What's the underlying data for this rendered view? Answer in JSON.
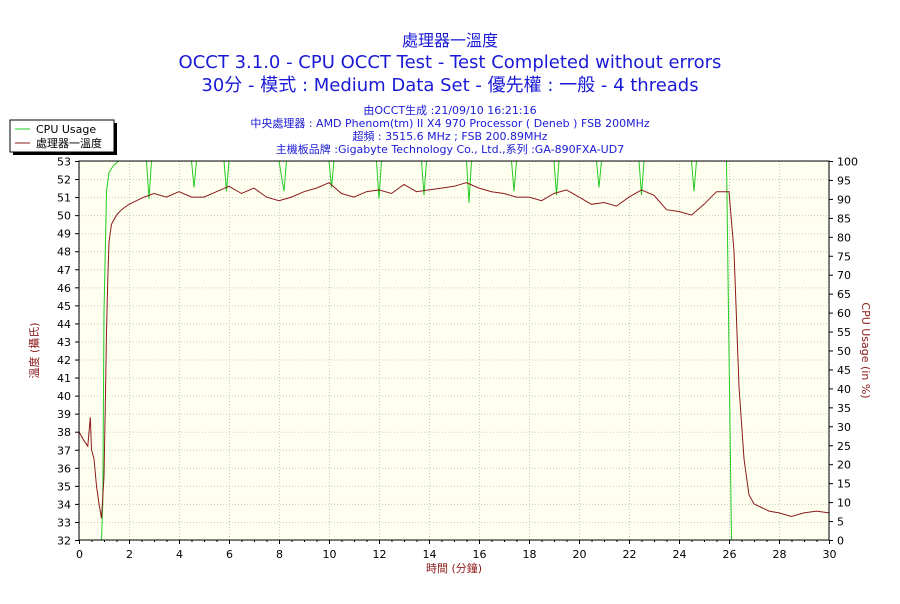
{
  "chart_data": {
    "type": "line",
    "title_lines": [
      "處理器一溫度",
      "OCCT 3.1.0 - CPU OCCT Test - Test Completed without errors",
      "30分 - 模式 : Medium Data Set - 優先權 : 一般 - 4 threads"
    ],
    "subtitle_lines": [
      "由OCCT生成 :21/09/10 16:21:16",
      "中央處理器 : AMD Phenom(tm) II X4 970 Processor ( Deneb ) FSB 200MHz",
      "超頻 : 3515.6 MHz ; FSB 200.89MHz",
      "主機板品牌 :Gigabyte Technology Co., Ltd.,系列 :GA-890FXA-UD7"
    ],
    "xlabel": "時間 (分鐘)",
    "ylabel_left": "溫度 (攝氏)",
    "ylabel_right": "CPU Usage (in %)",
    "xlim": [
      0,
      30
    ],
    "ylim_left": [
      32,
      53
    ],
    "ylim_right": [
      0,
      100
    ],
    "x_ticks": [
      0,
      2,
      4,
      6,
      8,
      10,
      12,
      14,
      16,
      18,
      20,
      22,
      24,
      26,
      28,
      30
    ],
    "y_ticks_left": [
      32,
      33,
      34,
      35,
      36,
      37,
      38,
      39,
      40,
      41,
      42,
      43,
      44,
      45,
      46,
      47,
      48,
      49,
      50,
      51,
      52,
      53
    ],
    "y_ticks_right": [
      0,
      5,
      10,
      15,
      20,
      25,
      30,
      35,
      40,
      45,
      50,
      55,
      60,
      65,
      70,
      75,
      80,
      85,
      90,
      95,
      100
    ],
    "grid": true,
    "legend_position": "top-left",
    "colors": {
      "background": "#fffff0",
      "cpu_usage": "#22cc22",
      "temperature": "#8b1a1a",
      "grid": "#c8c8c8",
      "title": "#1a1ad6"
    },
    "series": [
      {
        "name": "CPU Usage",
        "axis": "right",
        "color": "#22cc22",
        "x": [
          0,
          0.9,
          0.95,
          1.0,
          1.1,
          1.2,
          1.4,
          1.6,
          2.0,
          2.7,
          2.8,
          2.9,
          3.5,
          4.0,
          4.5,
          4.6,
          4.7,
          5.0,
          5.8,
          5.9,
          6.0,
          7.0,
          8.0,
          8.2,
          8.3,
          8.4,
          9.0,
          10.0,
          10.1,
          10.2,
          10.5,
          11.5,
          11.9,
          12.0,
          12.1,
          12.5,
          13.0,
          13.7,
          13.8,
          13.9,
          14.5,
          15.0,
          15.5,
          15.6,
          15.7,
          16.0,
          17.3,
          17.4,
          17.5,
          18.0,
          19.0,
          19.1,
          19.2,
          19.5,
          20.0,
          20.7,
          20.8,
          20.9,
          21.5,
          22.4,
          22.5,
          22.6,
          23.0,
          24.5,
          24.6,
          24.7,
          25.0,
          25.9,
          26.0,
          26.1,
          26.2,
          30
        ],
        "values": [
          0,
          0,
          10,
          60,
          92,
          97,
          99,
          100,
          100,
          100,
          90,
          100,
          100,
          100,
          100,
          93,
          100,
          100,
          100,
          92,
          100,
          100,
          100,
          92,
          100,
          100,
          100,
          100,
          93,
          100,
          100,
          100,
          100,
          90,
          100,
          100,
          100,
          100,
          91,
          100,
          100,
          100,
          100,
          89,
          100,
          100,
          100,
          92,
          100,
          100,
          100,
          91,
          100,
          100,
          100,
          100,
          93,
          100,
          100,
          100,
          91,
          100,
          100,
          100,
          92,
          100,
          100,
          100,
          50,
          0,
          0,
          0
        ]
      },
      {
        "name": "處理器一溫度",
        "axis": "left",
        "color": "#8b1a1a",
        "x": [
          0,
          0.2,
          0.35,
          0.45,
          0.5,
          0.6,
          0.7,
          0.8,
          0.9,
          1.0,
          1.05,
          1.1,
          1.15,
          1.2,
          1.3,
          1.5,
          1.7,
          2.0,
          2.3,
          2.6,
          3.0,
          3.5,
          4.0,
          4.5,
          5.0,
          5.5,
          6.0,
          6.5,
          7.0,
          7.5,
          8.0,
          8.5,
          9.0,
          9.5,
          10.0,
          10.5,
          11.0,
          11.5,
          12.0,
          12.5,
          13.0,
          13.5,
          14.0,
          14.5,
          15.0,
          15.5,
          16.0,
          16.5,
          17.0,
          17.5,
          18.0,
          18.5,
          19.0,
          19.5,
          20.0,
          20.5,
          21.0,
          21.5,
          22.0,
          22.5,
          23.0,
          23.5,
          24.0,
          24.5,
          25.0,
          25.5,
          26.0,
          26.2,
          26.4,
          26.6,
          26.8,
          27.0,
          27.3,
          27.6,
          28.0,
          28.5,
          29.0,
          29.5,
          30.0
        ],
        "values": [
          38,
          37.5,
          37.2,
          38.8,
          37.0,
          36.5,
          35.0,
          34.0,
          33.2,
          35.5,
          39.5,
          43.5,
          46.5,
          48.5,
          49.5,
          50.0,
          50.3,
          50.6,
          50.8,
          51.0,
          51.2,
          51.0,
          51.3,
          51.0,
          51.0,
          51.3,
          51.6,
          51.2,
          51.5,
          51.0,
          50.8,
          51.0,
          51.3,
          51.5,
          51.8,
          51.2,
          51.0,
          51.3,
          51.4,
          51.2,
          51.7,
          51.3,
          51.4,
          51.5,
          51.6,
          51.8,
          51.5,
          51.3,
          51.2,
          51.0,
          51.0,
          50.8,
          51.2,
          51.4,
          51.0,
          50.6,
          50.7,
          50.5,
          51.0,
          51.4,
          51.1,
          50.3,
          50.2,
          50.0,
          50.6,
          51.3,
          51.3,
          48.0,
          40.5,
          36.5,
          34.5,
          34.0,
          33.8,
          33.6,
          33.5,
          33.3,
          33.5,
          33.6,
          33.5
        ]
      }
    ]
  }
}
